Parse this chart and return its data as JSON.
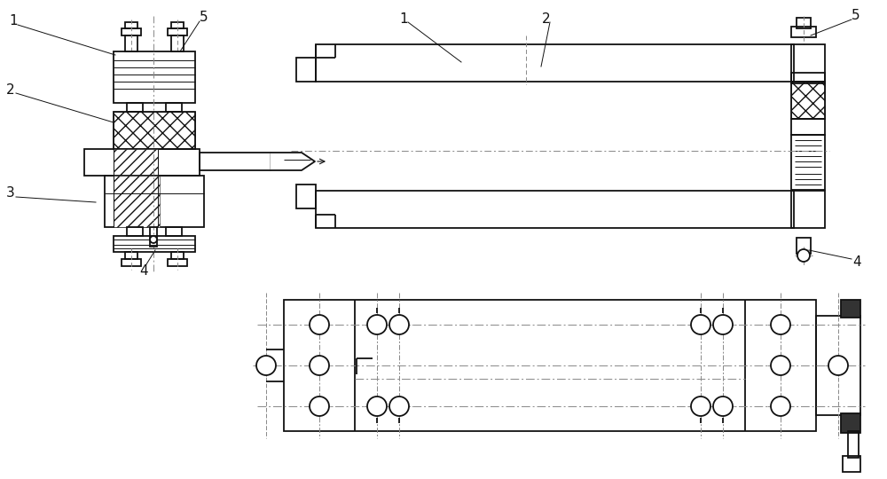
{
  "bg_color": "#ffffff",
  "line_color": "#111111",
  "fig_width": 10.0,
  "fig_height": 5.4,
  "lw_main": 1.3,
  "lw_thin": 0.7,
  "lw_hatch": 0.5
}
